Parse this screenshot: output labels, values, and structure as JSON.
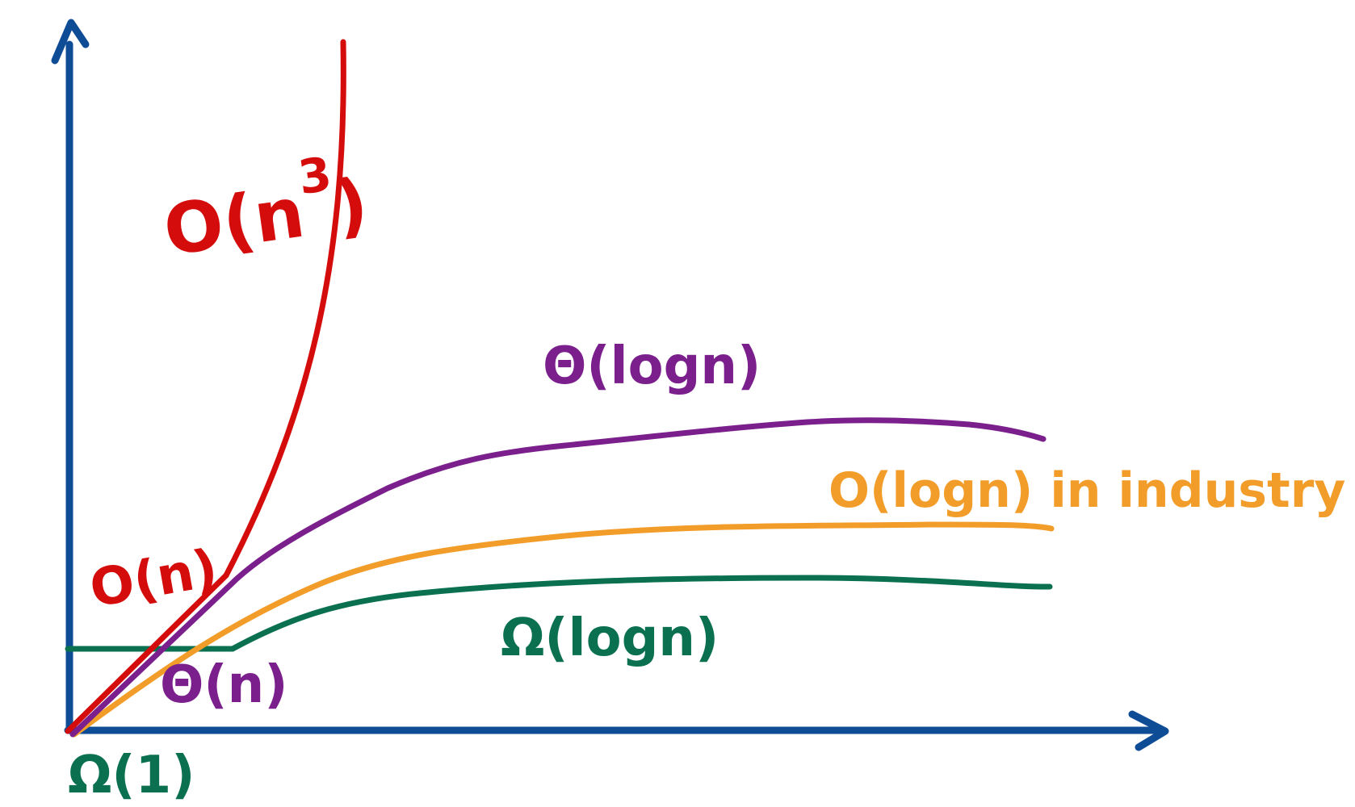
{
  "chart_data": {
    "type": "line",
    "title": "",
    "xlabel": "",
    "ylabel": "",
    "grid": false,
    "colors": {
      "axis": "#0f4c96",
      "red": "#d40c0c",
      "purple": "#7a1f8c",
      "orange": "#f29d2a",
      "green": "#0a7050"
    },
    "series": [
      {
        "name": "O(n^3)",
        "color_key": "red",
        "label_main": "O(n",
        "label_sup": "3",
        "label_close": ")"
      },
      {
        "name": "O(n)",
        "color_key": "red",
        "label": "O(n)"
      },
      {
        "name": "Θ(logn)",
        "color_key": "purple",
        "label": "Θ(logn)"
      },
      {
        "name": "Θ(n)",
        "color_key": "purple",
        "label": "Θ(n)"
      },
      {
        "name": "O(logn) in industry",
        "color_key": "orange",
        "label": "O(logn) in industry"
      },
      {
        "name": "Ω(logn)",
        "color_key": "green",
        "label": "Ω(logn)"
      },
      {
        "name": "Ω(1)",
        "color_key": "green",
        "label": "Ω(1)"
      }
    ]
  }
}
